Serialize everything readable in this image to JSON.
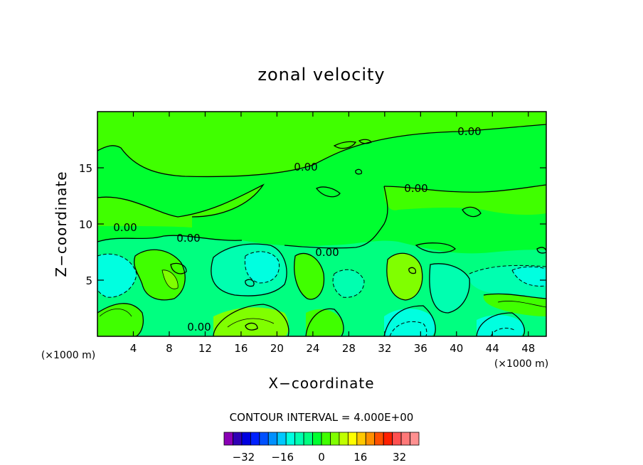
{
  "chart_data": {
    "type": "heatmap",
    "title": "zonal velocity",
    "xlabel": "X−coordinate",
    "ylabel": "Z−coordinate",
    "x_unit": "(×1000 m)",
    "y_unit": "(×1000 m)",
    "xlim": [
      0,
      50
    ],
    "ylim": [
      0,
      20
    ],
    "x_ticks": [
      4,
      8,
      12,
      16,
      20,
      24,
      28,
      32,
      36,
      40,
      44,
      48
    ],
    "y_ticks": [
      5,
      10,
      15
    ],
    "contour_interval_label": "CONTOUR INTERVAL = 4.000E+00",
    "contour_labels": [
      "0.00",
      "0.00",
      "0.00",
      "0.00",
      "0.00",
      "0.00",
      "0.00"
    ],
    "colorbar": {
      "range": [
        -40,
        40
      ],
      "step": 4,
      "tick_labels": [
        "−32",
        "−16",
        "0",
        "16",
        "32"
      ],
      "tick_values": [
        -32,
        -16,
        0,
        16,
        32
      ],
      "colors": [
        "#8a00b5",
        "#3000b5",
        "#0000e0",
        "#0020ff",
        "#0050ff",
        "#0090ff",
        "#00c8ff",
        "#00ffe0",
        "#00ffb0",
        "#00ff80",
        "#00ff30",
        "#40ff00",
        "#80ff00",
        "#c0ff00",
        "#ffff00",
        "#ffc800",
        "#ff9000",
        "#ff5000",
        "#ff2000",
        "#ff5050",
        "#ff7878",
        "#ff9090"
      ]
    },
    "field_regions": [
      {
        "x": [
          4,
          14
        ],
        "z": [
          2,
          8
        ],
        "value": 4
      },
      {
        "x": [
          0,
          5
        ],
        "z": [
          3,
          7
        ],
        "value": -6
      },
      {
        "x": [
          14,
          22
        ],
        "z": [
          4,
          8
        ],
        "value": -8
      },
      {
        "x": [
          27,
          31
        ],
        "z": [
          4,
          7
        ],
        "value": -5
      },
      {
        "x": [
          32,
          37
        ],
        "z": [
          3,
          7
        ],
        "value": 6
      },
      {
        "x": [
          41,
          50
        ],
        "z": [
          4,
          7
        ],
        "value": -6
      },
      {
        "x": [
          15,
          22
        ],
        "z": [
          0,
          2
        ],
        "value": 4
      },
      {
        "x": [
          33,
          37
        ],
        "z": [
          0,
          2
        ],
        "value": -8
      },
      {
        "x": [
          43,
          50
        ],
        "z": [
          1,
          4
        ],
        "value": 4
      }
    ]
  }
}
